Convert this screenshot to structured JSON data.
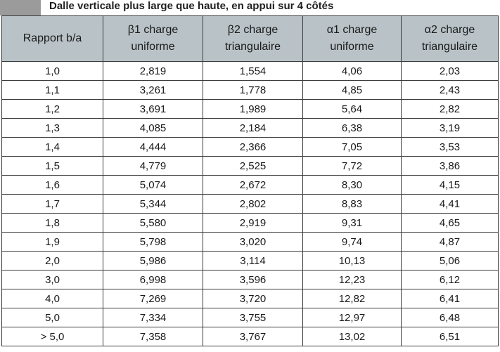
{
  "title": "Dalle verticale plus large que haute, en appui sur 4 côtés",
  "colors": {
    "header_bg": "#b9c3c7",
    "title_swatch": "#9b9b9b",
    "border": "#3a3a3a"
  },
  "table": {
    "headers": [
      {
        "line1": "Rapport b/a",
        "line2": ""
      },
      {
        "line1": "β1 charge",
        "line2": "uniforme"
      },
      {
        "line1": "β2 charge",
        "line2": "triangulaire"
      },
      {
        "line1": "α1 charge",
        "line2": "uniforme"
      },
      {
        "line1": "α2 charge",
        "line2": "triangulaire"
      }
    ],
    "rows": [
      [
        "1,0",
        "2,819",
        "1,554",
        "4,06",
        "2,03"
      ],
      [
        "1,1",
        "3,261",
        "1,778",
        "4,85",
        "2,43"
      ],
      [
        "1,2",
        "3,691",
        "1,989",
        "5,64",
        "2,82"
      ],
      [
        "1,3",
        "4,085",
        "2,184",
        "6,38",
        "3,19"
      ],
      [
        "1,4",
        "4,444",
        "2,366",
        "7,05",
        "3,53"
      ],
      [
        "1,5",
        "4,779",
        "2,525",
        "7,72",
        "3,86"
      ],
      [
        "1,6",
        "5,074",
        "2,672",
        "8,30",
        "4,15"
      ],
      [
        "1,7",
        "5,344",
        "2,802",
        "8,83",
        "4,41"
      ],
      [
        "1,8",
        "5,580",
        "2,919",
        "9,31",
        "4,65"
      ],
      [
        "1,9",
        "5,798",
        "3,020",
        "9,74",
        "4,87"
      ],
      [
        "2,0",
        "5,986",
        "3,114",
        "10,13",
        "5,06"
      ],
      [
        "3,0",
        "6,998",
        "3,596",
        "12,23",
        "6,12"
      ],
      [
        "4,0",
        "7,269",
        "3,720",
        "12,82",
        "6,41"
      ],
      [
        "5,0",
        "7,334",
        "3,755",
        "12,97",
        "6,48"
      ],
      [
        "> 5,0",
        "7,358",
        "3,767",
        "13,02",
        "6,51"
      ]
    ]
  }
}
